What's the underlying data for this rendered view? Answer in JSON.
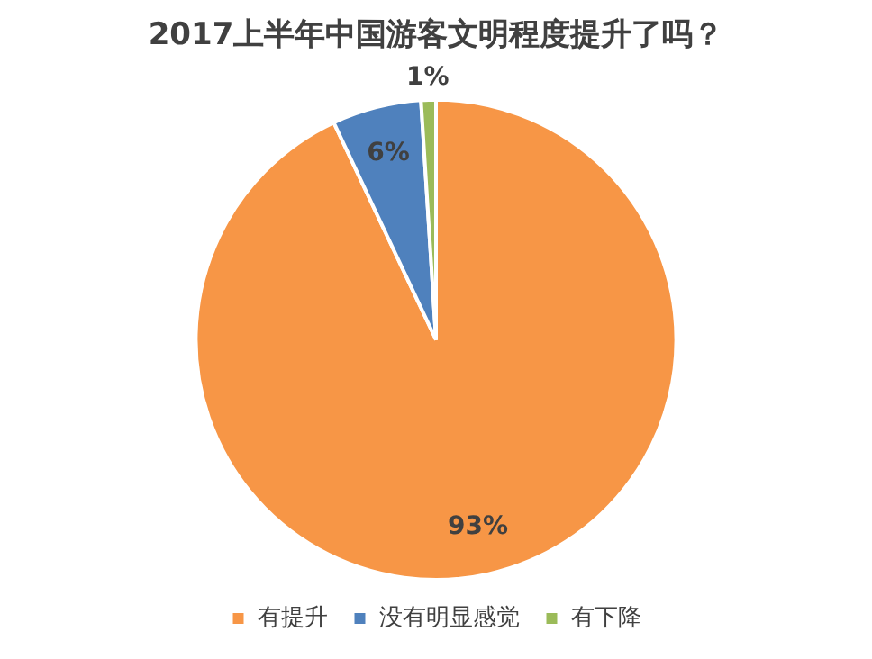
{
  "chart_data": {
    "type": "pie",
    "title": "2017上半年中国游客文明程度提升了吗？",
    "categories": [
      "有提升",
      "没有明显感觉",
      "有下降"
    ],
    "values": [
      93,
      6,
      1
    ],
    "value_labels": [
      "93%",
      "6%",
      "1%"
    ],
    "colors": [
      "#f79646",
      "#4f81bd",
      "#9bbb59"
    ],
    "legend": "bottom"
  }
}
